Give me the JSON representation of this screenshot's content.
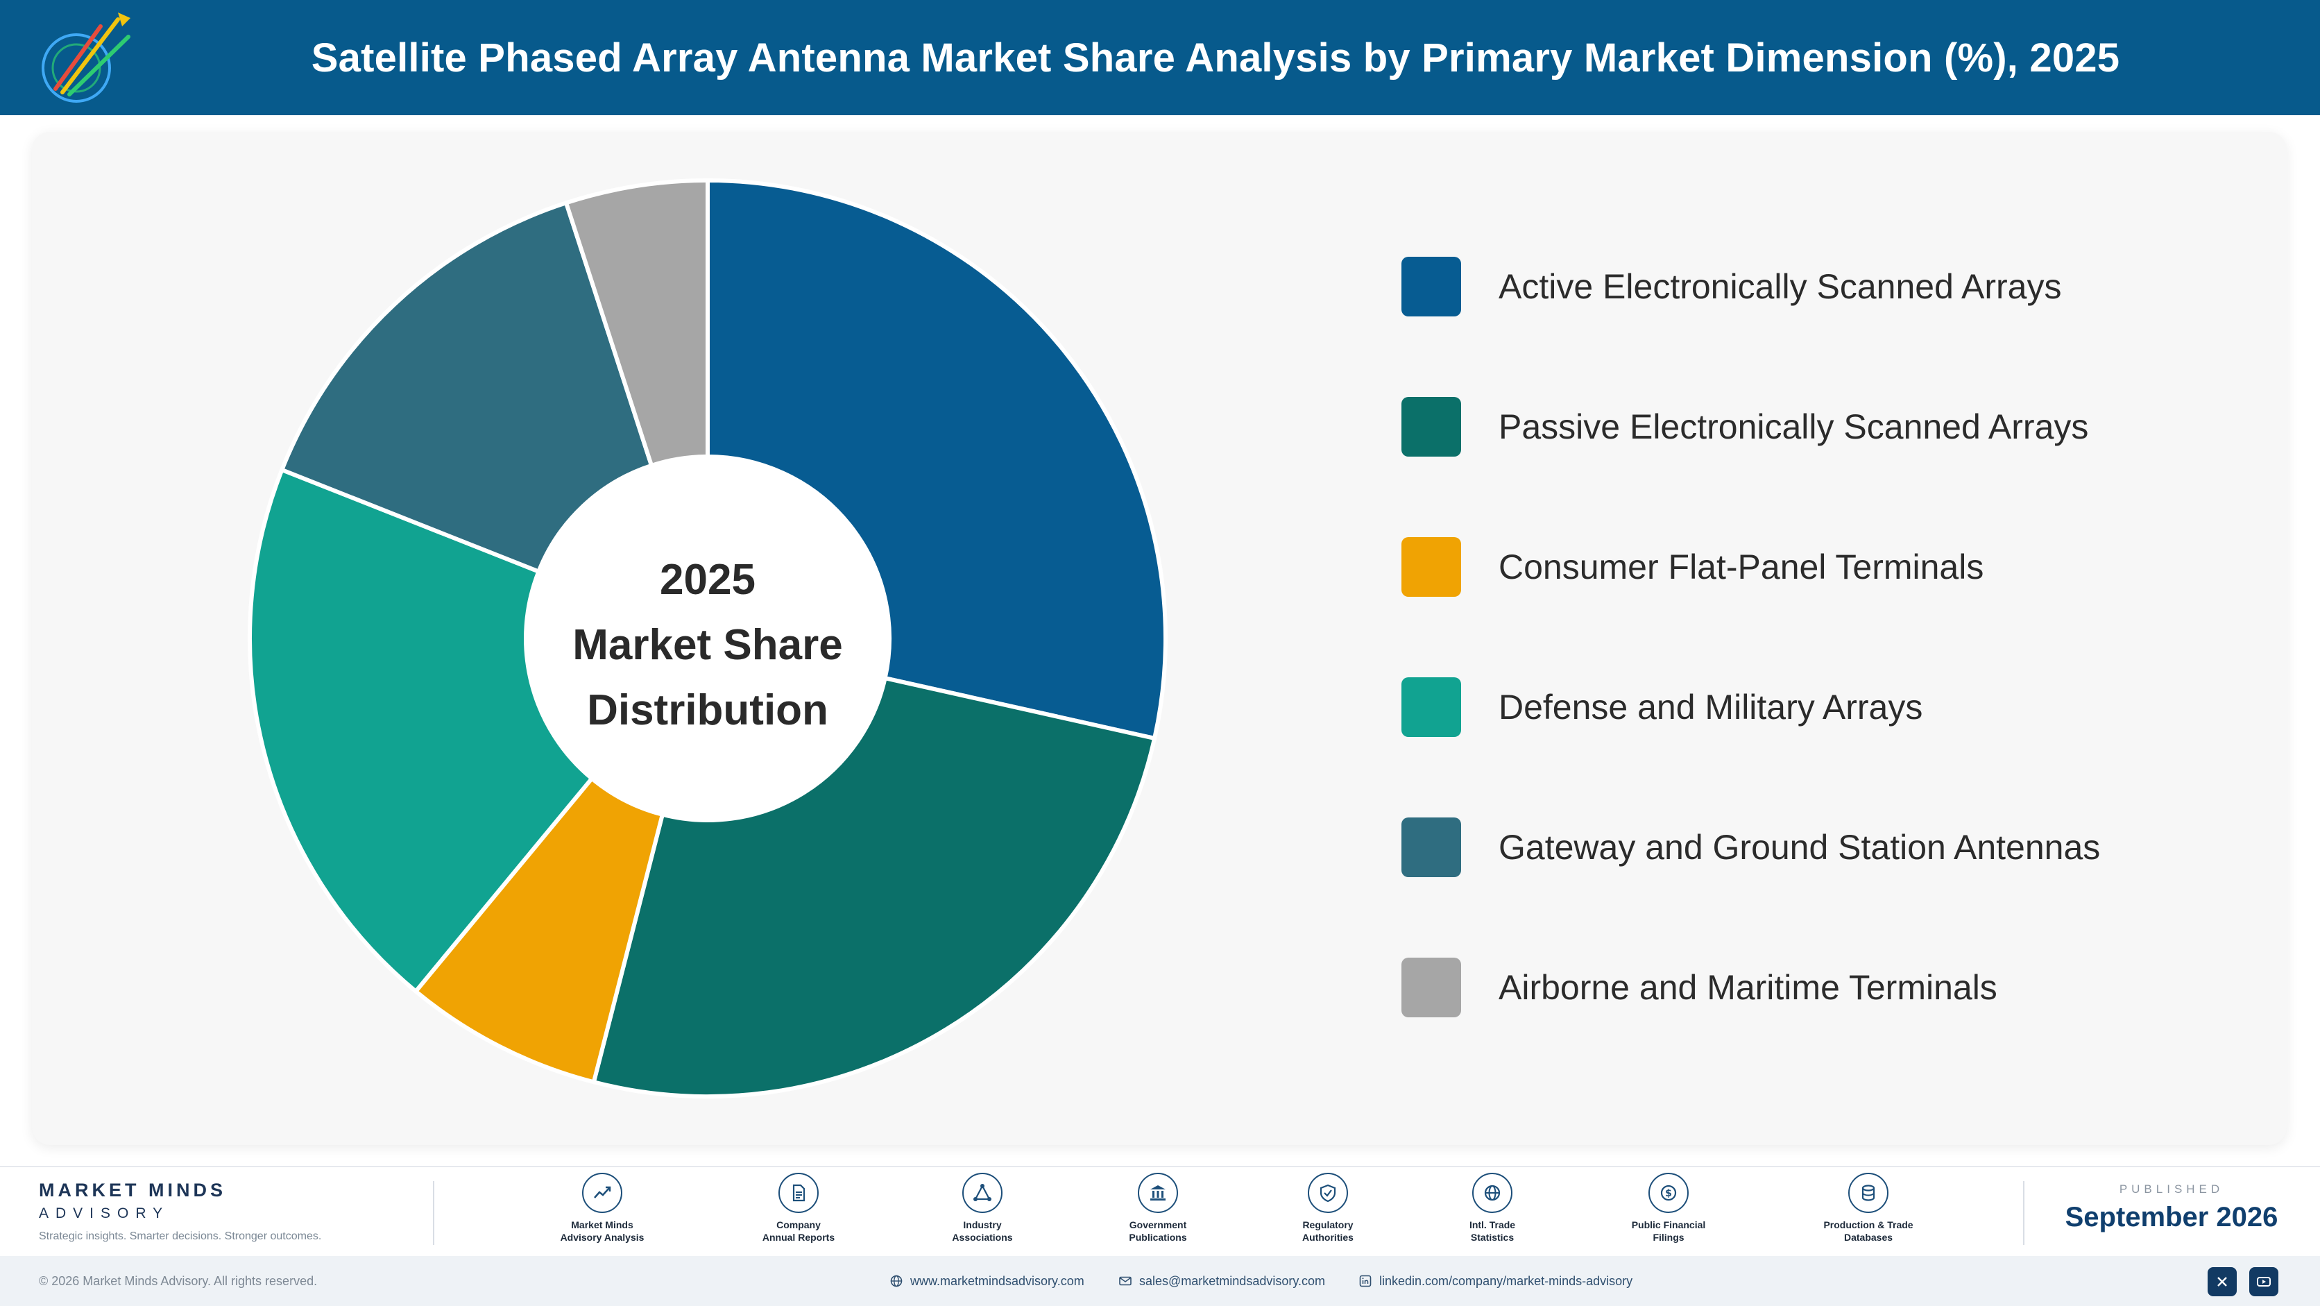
{
  "header": {
    "title": "Satellite Phased Array Antenna Market Share Analysis by Primary Market Dimension (%), 2025"
  },
  "chart_data": {
    "type": "pie",
    "variant": "donut",
    "center_text": [
      "2025",
      "Market Share",
      "Distribution"
    ],
    "categories": [
      "Active Electronically Scanned Arrays",
      "Passive Electronically Scanned Arrays",
      "Consumer Flat-Panel Terminals",
      "Defense and Military Arrays",
      "Gateway and Ground Station Antennas",
      "Airborne and Maritime Terminals"
    ],
    "values": [
      28.5,
      25.5,
      7.0,
      20.0,
      14.0,
      5.0
    ],
    "colors": [
      "#075c92",
      "#0b7069",
      "#f0a303",
      "#11a391",
      "#2f6d80",
      "#a6a6a6"
    ],
    "legend_position": "right",
    "start_angle_deg": 0,
    "direction": "clockwise"
  },
  "footer": {
    "brand_name": "MARKET MINDS",
    "brand_sub": "ADVISORY",
    "brand_tagline": "Strategic insights. Smarter decisions. Stronger outcomes.",
    "sources": [
      {
        "line1": "Market Minds",
        "line2": "Advisory Analysis",
        "icon": "trend-icon"
      },
      {
        "line1": "Company",
        "line2": "Annual Reports",
        "icon": "document-icon"
      },
      {
        "line1": "Industry",
        "line2": "Associations",
        "icon": "network-icon"
      },
      {
        "line1": "Government",
        "line2": "Publications",
        "icon": "government-icon"
      },
      {
        "line1": "Regulatory",
        "line2": "Authorities",
        "icon": "shield-icon"
      },
      {
        "line1": "Intl. Trade",
        "line2": "Statistics",
        "icon": "globe-icon"
      },
      {
        "line1": "Public Financial",
        "line2": "Filings",
        "icon": "dollar-icon"
      },
      {
        "line1": "Production & Trade",
        "line2": "Databases",
        "icon": "database-icon"
      }
    ],
    "published_label": "PUBLISHED",
    "published_date": "September 2026"
  },
  "bottom": {
    "copyright": "© 2026 Market Minds Advisory. All rights reserved.",
    "website": "www.marketmindsadvisory.com",
    "email": "sales@marketmindsadvisory.com",
    "linkedin": "linkedin.com/company/market-minds-advisory"
  }
}
